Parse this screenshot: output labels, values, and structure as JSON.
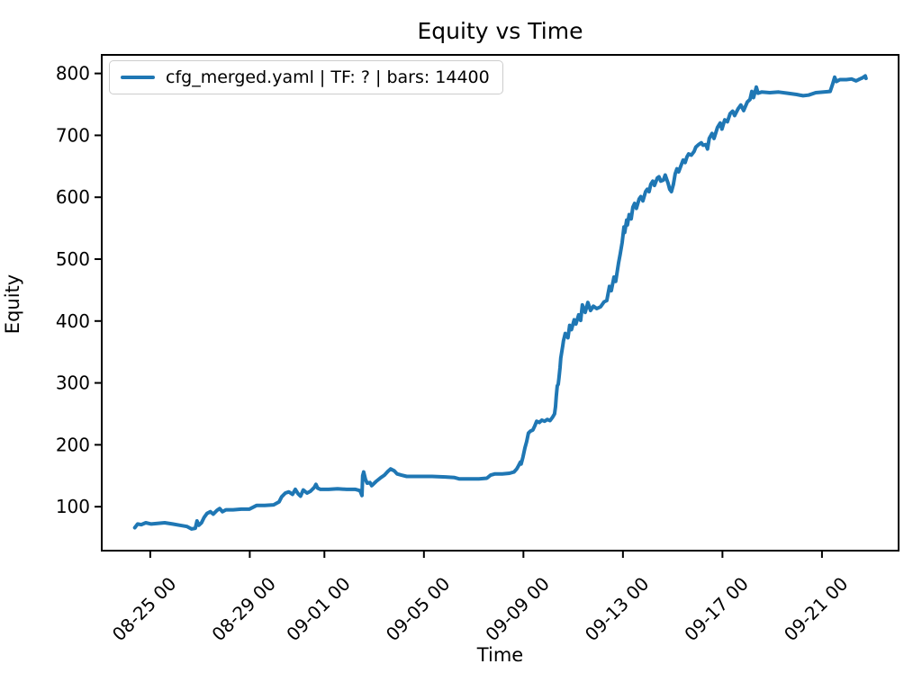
{
  "figure": {
    "background": "#ffffff",
    "text_color": "#000000",
    "frame_color": "#000000"
  },
  "chart_data": {
    "type": "line",
    "title": "Equity vs Time",
    "xlabel": "Time",
    "ylabel": "Equity",
    "grid": false,
    "legend_position": "upper left",
    "legend": [
      {
        "label": "cfg_merged.yaml | TF: ? | bars: 14400",
        "color": "#1f77b4"
      }
    ],
    "x_unit": "days since 08-25 00:00",
    "xlim": [
      -1.95,
      30.08
    ],
    "ylim": [
      29,
      830
    ],
    "y_ticks": [
      100,
      200,
      300,
      400,
      500,
      600,
      700,
      800
    ],
    "x_ticks": [
      {
        "day": 0,
        "label": "08-25 00"
      },
      {
        "day": 4,
        "label": "08-29 00"
      },
      {
        "day": 7,
        "label": "09-01 00"
      },
      {
        "day": 11,
        "label": "09-05 00"
      },
      {
        "day": 15,
        "label": "09-09 00"
      },
      {
        "day": 19,
        "label": "09-13 00"
      },
      {
        "day": 23,
        "label": "09-17 00"
      },
      {
        "day": 27,
        "label": "09-21 00"
      }
    ],
    "series": [
      {
        "name": "cfg_merged.yaml | TF: ? | bars: 14400",
        "color": "#1f77b4",
        "points": [
          [
            -0.62,
            66
          ],
          [
            -0.51,
            72
          ],
          [
            -0.36,
            71
          ],
          [
            -0.18,
            74
          ],
          [
            0.04,
            72
          ],
          [
            0.29,
            73
          ],
          [
            0.58,
            74
          ],
          [
            0.9,
            72
          ],
          [
            1.19,
            70
          ],
          [
            1.48,
            68
          ],
          [
            1.66,
            64
          ],
          [
            1.81,
            65
          ],
          [
            1.88,
            77
          ],
          [
            1.95,
            70
          ],
          [
            2.06,
            74
          ],
          [
            2.17,
            83
          ],
          [
            2.28,
            89
          ],
          [
            2.42,
            92
          ],
          [
            2.53,
            88
          ],
          [
            2.68,
            94
          ],
          [
            2.79,
            97
          ],
          [
            2.9,
            92
          ],
          [
            3.04,
            95
          ],
          [
            3.33,
            95
          ],
          [
            3.66,
            96
          ],
          [
            3.98,
            96
          ],
          [
            4.13,
            99
          ],
          [
            4.27,
            102
          ],
          [
            4.6,
            102
          ],
          [
            4.96,
            103
          ],
          [
            5.18,
            108
          ],
          [
            5.28,
            116
          ],
          [
            5.43,
            122
          ],
          [
            5.57,
            124
          ],
          [
            5.72,
            120
          ],
          [
            5.83,
            128
          ],
          [
            5.94,
            121
          ],
          [
            6.04,
            117
          ],
          [
            6.15,
            127
          ],
          [
            6.3,
            122
          ],
          [
            6.44,
            125
          ],
          [
            6.59,
            131
          ],
          [
            6.66,
            136
          ],
          [
            6.73,
            130
          ],
          [
            6.84,
            128
          ],
          [
            7.17,
            128
          ],
          [
            7.53,
            129
          ],
          [
            7.89,
            128
          ],
          [
            8.25,
            128
          ],
          [
            8.43,
            126
          ],
          [
            8.51,
            118
          ],
          [
            8.54,
            150
          ],
          [
            8.58,
            156
          ],
          [
            8.65,
            144
          ],
          [
            8.72,
            138
          ],
          [
            8.83,
            139
          ],
          [
            8.9,
            134
          ],
          [
            9.08,
            141
          ],
          [
            9.27,
            147
          ],
          [
            9.41,
            151
          ],
          [
            9.55,
            157
          ],
          [
            9.66,
            161
          ],
          [
            9.81,
            158
          ],
          [
            9.92,
            153
          ],
          [
            10.1,
            151
          ],
          [
            10.31,
            149
          ],
          [
            10.78,
            149
          ],
          [
            11.33,
            149
          ],
          [
            11.87,
            148
          ],
          [
            12.23,
            147
          ],
          [
            12.41,
            145
          ],
          [
            12.78,
            145
          ],
          [
            13.21,
            145
          ],
          [
            13.53,
            146
          ],
          [
            13.68,
            151
          ],
          [
            13.86,
            153
          ],
          [
            14.15,
            153
          ],
          [
            14.44,
            154
          ],
          [
            14.62,
            156
          ],
          [
            14.73,
            161
          ],
          [
            14.8,
            166
          ],
          [
            14.88,
            172
          ],
          [
            14.91,
            169
          ],
          [
            14.98,
            180
          ],
          [
            15.06,
            195
          ],
          [
            15.13,
            205
          ],
          [
            15.2,
            219
          ],
          [
            15.28,
            222
          ],
          [
            15.38,
            224
          ],
          [
            15.45,
            230
          ],
          [
            15.53,
            238
          ],
          [
            15.64,
            236
          ],
          [
            15.74,
            240
          ],
          [
            15.85,
            238
          ],
          [
            15.96,
            241
          ],
          [
            16.07,
            239
          ],
          [
            16.18,
            245
          ],
          [
            16.25,
            250
          ],
          [
            16.29,
            262
          ],
          [
            16.32,
            278
          ],
          [
            16.36,
            295
          ],
          [
            16.4,
            298
          ],
          [
            16.43,
            308
          ],
          [
            16.47,
            325
          ],
          [
            16.5,
            340
          ],
          [
            16.58,
            360
          ],
          [
            16.61,
            368
          ],
          [
            16.68,
            380
          ],
          [
            16.79,
            373
          ],
          [
            16.86,
            393
          ],
          [
            16.93,
            386
          ],
          [
            17.04,
            402
          ],
          [
            17.11,
            395
          ],
          [
            17.22,
            410
          ],
          [
            17.3,
            401
          ],
          [
            17.37,
            426
          ],
          [
            17.48,
            414
          ],
          [
            17.59,
            430
          ],
          [
            17.7,
            417
          ],
          [
            17.81,
            424
          ],
          [
            17.95,
            420
          ],
          [
            18.1,
            423
          ],
          [
            18.24,
            431
          ],
          [
            18.35,
            433
          ],
          [
            18.46,
            456
          ],
          [
            18.53,
            449
          ],
          [
            18.64,
            471
          ],
          [
            18.71,
            464
          ],
          [
            18.82,
            493
          ],
          [
            18.89,
            508
          ],
          [
            18.97,
            527
          ],
          [
            19.04,
            552
          ],
          [
            19.07,
            543
          ],
          [
            19.15,
            563
          ],
          [
            19.18,
            555
          ],
          [
            19.25,
            572
          ],
          [
            19.33,
            565
          ],
          [
            19.4,
            584
          ],
          [
            19.47,
            590
          ],
          [
            19.54,
            582
          ],
          [
            19.65,
            597
          ],
          [
            19.72,
            601
          ],
          [
            19.8,
            594
          ],
          [
            19.91,
            609
          ],
          [
            19.98,
            613
          ],
          [
            20.05,
            609
          ],
          [
            20.12,
            621
          ],
          [
            20.2,
            626
          ],
          [
            20.27,
            619
          ],
          [
            20.38,
            631
          ],
          [
            20.45,
            633
          ],
          [
            20.52,
            626
          ],
          [
            20.63,
            628
          ],
          [
            20.7,
            636
          ],
          [
            20.81,
            623
          ],
          [
            20.88,
            613
          ],
          [
            20.95,
            609
          ],
          [
            21.03,
            621
          ],
          [
            21.1,
            638
          ],
          [
            21.17,
            646
          ],
          [
            21.24,
            641
          ],
          [
            21.35,
            653
          ],
          [
            21.42,
            660
          ],
          [
            21.5,
            656
          ],
          [
            21.57,
            665
          ],
          [
            21.64,
            670
          ],
          [
            21.75,
            668
          ],
          [
            21.86,
            674
          ],
          [
            21.93,
            681
          ],
          [
            22.04,
            685
          ],
          [
            22.15,
            688
          ],
          [
            22.22,
            684
          ],
          [
            22.33,
            685
          ],
          [
            22.4,
            678
          ],
          [
            22.47,
            695
          ],
          [
            22.58,
            703
          ],
          [
            22.66,
            695
          ],
          [
            22.8,
            713
          ],
          [
            22.91,
            720
          ],
          [
            22.98,
            710
          ],
          [
            23.09,
            725
          ],
          [
            23.2,
            722
          ],
          [
            23.31,
            735
          ],
          [
            23.41,
            739
          ],
          [
            23.49,
            732
          ],
          [
            23.63,
            743
          ],
          [
            23.74,
            749
          ],
          [
            23.85,
            740
          ],
          [
            24.0,
            754
          ],
          [
            24.11,
            758
          ],
          [
            24.18,
            771
          ],
          [
            24.25,
            761
          ],
          [
            24.36,
            778
          ],
          [
            24.43,
            768
          ],
          [
            24.57,
            770
          ],
          [
            24.9,
            769
          ],
          [
            25.26,
            770
          ],
          [
            25.62,
            768
          ],
          [
            25.98,
            766
          ],
          [
            26.24,
            764
          ],
          [
            26.46,
            765
          ],
          [
            26.75,
            769
          ],
          [
            27.07,
            770
          ],
          [
            27.33,
            771
          ],
          [
            27.43,
            783
          ],
          [
            27.51,
            794
          ],
          [
            27.58,
            787
          ],
          [
            27.72,
            790
          ],
          [
            27.98,
            790
          ],
          [
            28.19,
            791
          ],
          [
            28.37,
            788
          ],
          [
            28.52,
            791
          ],
          [
            28.63,
            793
          ],
          [
            28.74,
            796
          ],
          [
            28.77,
            792
          ]
        ]
      }
    ]
  }
}
